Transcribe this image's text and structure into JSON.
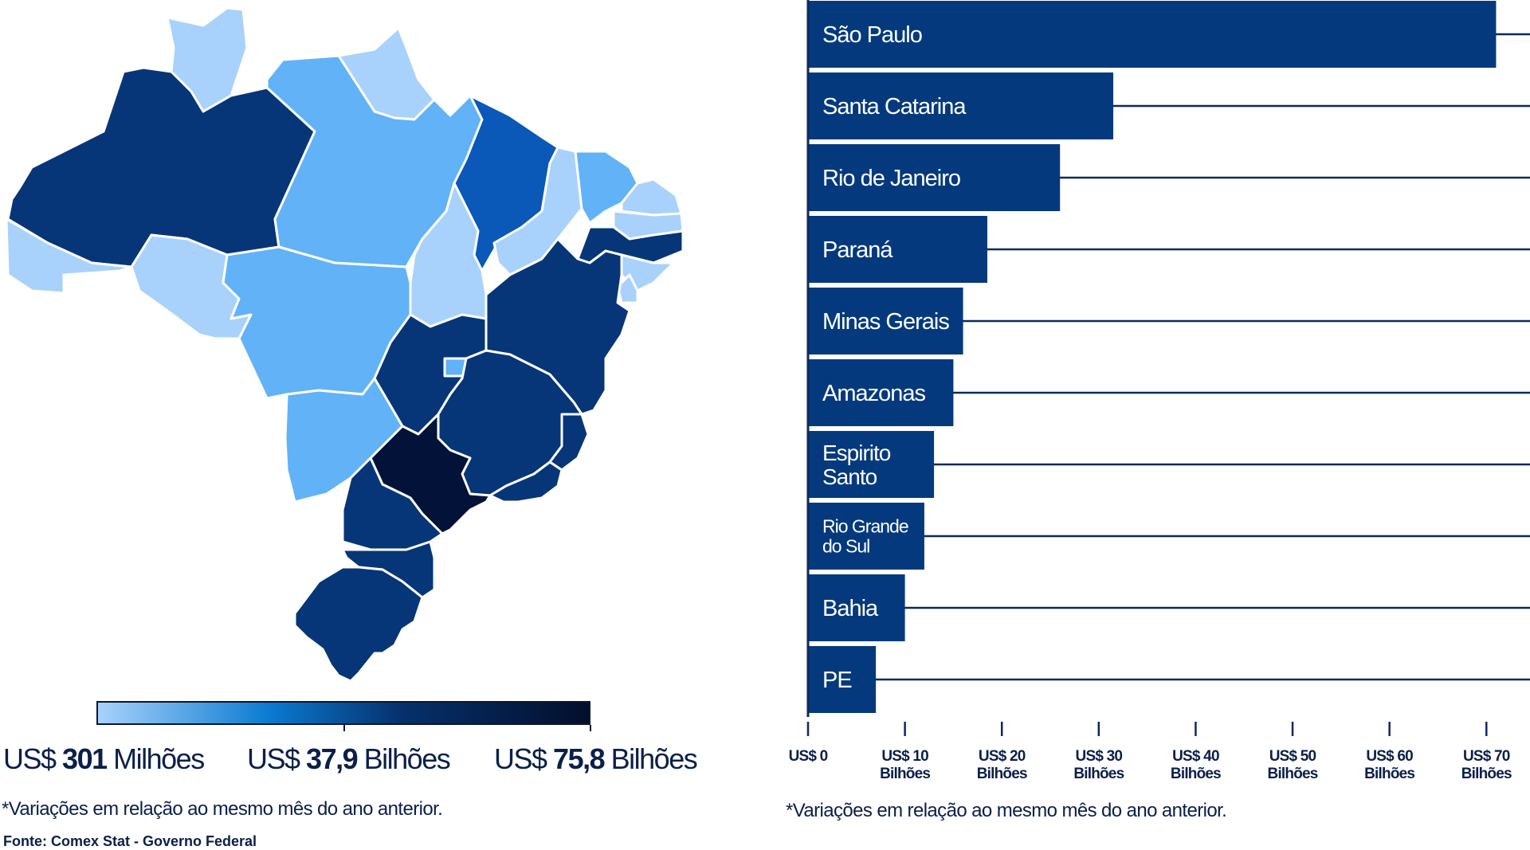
{
  "colors": {
    "bar": "#043a7d",
    "axis": "#0a2a5e",
    "scale_low": "#a8d2fb",
    "scale_mid": "#0a7ad1",
    "scale_high": "#030f2b",
    "state_light": "#a8d2fb",
    "state_mid_light": "#62b2f7",
    "state_medium": "#0a58b8",
    "state_dark": "#063677",
    "state_darkest": "#021238"
  },
  "map": {
    "legend": {
      "min_prefix": "US$",
      "min_value": "301",
      "min_unit": "Milhões",
      "mid_prefix": "US$",
      "mid_value": "37,9",
      "mid_unit": "Bilhões",
      "max_prefix": "US$",
      "max_value": "75,8",
      "max_unit": "Bilhões"
    },
    "footnote": "*Variações em relação ao mesmo mês do ano anterior.",
    "source": "Fonte: Comex Stat - Governo Federal"
  },
  "chart_data": {
    "type": "bar",
    "orientation": "horizontal",
    "categories": [
      "São Paulo",
      "Santa Catarina",
      "Rio de Janeiro",
      "Paraná",
      "Minas Gerais",
      "Amazonas",
      "Espirito Santo",
      "Rio Grande do Sul",
      "Bahia",
      "PE"
    ],
    "category_lines": [
      [
        "São Paulo"
      ],
      [
        "Santa Catarina"
      ],
      [
        "Rio de Janeiro"
      ],
      [
        "Paraná"
      ],
      [
        "Minas Gerais"
      ],
      [
        "Amazonas"
      ],
      [
        "Espirito",
        "Santo"
      ],
      [
        "Rio Grande",
        "do Sul"
      ],
      [
        "Bahia"
      ],
      [
        "PE"
      ]
    ],
    "values": [
      71,
      31.5,
      26,
      18.5,
      16,
      15,
      13,
      12,
      10,
      7
    ],
    "xlim": [
      0,
      74.5
    ],
    "ticks": [
      {
        "value": 0,
        "line1": "US$ 0",
        "line2": ""
      },
      {
        "value": 10,
        "line1": "US$ 10",
        "line2": "Bilhões"
      },
      {
        "value": 20,
        "line1": "US$ 20",
        "line2": "Bilhões"
      },
      {
        "value": 30,
        "line1": "US$ 30",
        "line2": "Bilhões"
      },
      {
        "value": 40,
        "line1": "US$ 40",
        "line2": "Bilhões"
      },
      {
        "value": 50,
        "line1": "US$ 50",
        "line2": "Bilhões"
      },
      {
        "value": 60,
        "line1": "US$ 60",
        "line2": "Bilhões"
      },
      {
        "value": 70,
        "line1": "US$ 70",
        "line2": "Bilhões"
      }
    ],
    "grid": "horizontal lines at each category",
    "footnote": "*Variações em relação ao mesmo mês do ano anterior."
  }
}
